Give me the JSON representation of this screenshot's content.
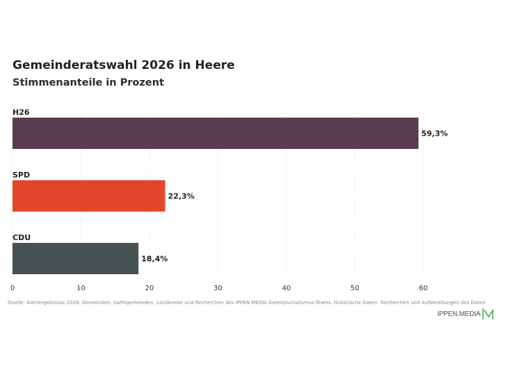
{
  "chart_data": {
    "type": "bar",
    "orientation": "horizontal",
    "title": "Gemeinderatswahl 2026 in Heere",
    "subtitle": "Stimmenanteile in Prozent",
    "categories": [
      "H26",
      "SPD",
      "CDU"
    ],
    "values": [
      59.3,
      22.3,
      18.4
    ],
    "value_labels": [
      "59,3%",
      "22,3%",
      "18,4%"
    ],
    "colors": [
      "#5a3d52",
      "#e5452b",
      "#455251"
    ],
    "xlim": [
      0,
      60
    ],
    "xticks": [
      "0",
      "10",
      "20",
      "30",
      "40",
      "50",
      "60"
    ],
    "grid": true
  },
  "source": "Quelle: Wahlergebnisse 2026: Gemeinden, Samtgemeinden, Landkreise und Recherchen des IPPEN.MEDIA Datenjournalismus-Teams. Historische Daten: Recherchen und Aufbereitungen des Daten",
  "logo": {
    "text": "IPPEN.MEDIA",
    "color": "#4caf50"
  }
}
